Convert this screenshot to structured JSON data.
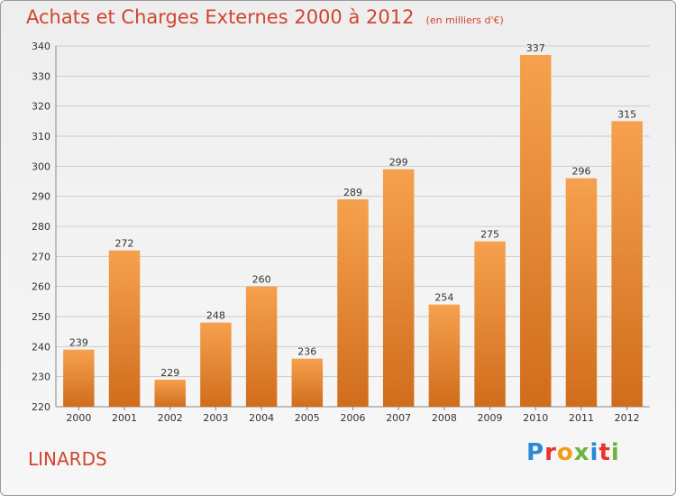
{
  "title": "Achats et Charges Externes 2000 à 2012",
  "unit_note": "(en milliers d'€)",
  "town": "LINARDS",
  "logo": {
    "text": "Proxiti",
    "letters": [
      "P",
      "r",
      "o",
      "x",
      "i",
      "t",
      "i"
    ]
  },
  "colors": {
    "title": "#d0452e",
    "bar_top": "#f6a14f",
    "bar_bottom": "#d06d1c",
    "grid": "#cccccc"
  },
  "chart_data": {
    "type": "bar",
    "categories": [
      "2000",
      "2001",
      "2002",
      "2003",
      "2004",
      "2005",
      "2006",
      "2007",
      "2008",
      "2009",
      "2010",
      "2011",
      "2012"
    ],
    "values": [
      239,
      272,
      229,
      248,
      260,
      236,
      289,
      299,
      254,
      275,
      337,
      296,
      315
    ],
    "title": "Achats et Charges Externes 2000 à 2012",
    "xlabel": "",
    "ylabel": "",
    "ylim": [
      220,
      340
    ],
    "yticks": [
      220,
      230,
      240,
      250,
      260,
      270,
      280,
      290,
      300,
      310,
      320,
      330,
      340
    ],
    "grid": true,
    "data_labels": true
  }
}
